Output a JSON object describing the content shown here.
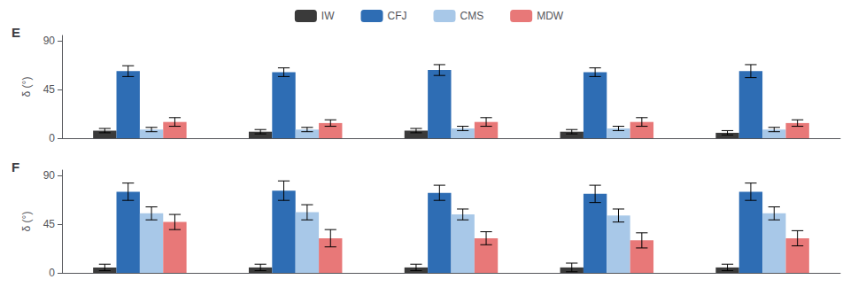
{
  "chart_data": [
    {
      "type": "bar",
      "title": "E",
      "categories": [
        null,
        null,
        null,
        null,
        null
      ],
      "series": [
        {
          "name": "IW",
          "color": "#3a3a3a",
          "values": [
            7,
            6,
            7,
            6,
            5
          ],
          "errors": [
            2,
            2,
            2,
            2,
            2
          ]
        },
        {
          "name": "CFJ",
          "color": "#2e6db4",
          "values": [
            62,
            61,
            63,
            61,
            62
          ],
          "errors": [
            5,
            4,
            5,
            4,
            6
          ]
        },
        {
          "name": "CMS",
          "color": "#a8c8e8",
          "values": [
            8,
            8,
            9,
            9,
            8
          ],
          "errors": [
            2,
            2,
            2,
            2,
            2
          ]
        },
        {
          "name": "MDW",
          "color": "#e87878",
          "values": [
            15,
            14,
            15,
            15,
            14
          ],
          "errors": [
            4,
            3,
            4,
            4,
            3
          ]
        }
      ],
      "ylabel": "δ (°)",
      "ylim": [
        0,
        95
      ],
      "yticks": [
        0,
        45,
        90
      ],
      "grid": false,
      "legend": "top",
      "tick_labels": "y"
    },
    {
      "type": "bar",
      "title": "F",
      "categories": [
        null,
        null,
        null,
        null,
        null
      ],
      "series": [
        {
          "name": "IW",
          "color": "#3a3a3a",
          "values": [
            5,
            5,
            5,
            5,
            5
          ],
          "errors": [
            3,
            3,
            3,
            4,
            3
          ]
        },
        {
          "name": "CFJ",
          "color": "#2e6db4",
          "values": [
            75,
            76,
            74,
            73,
            75
          ],
          "errors": [
            8,
            9,
            7,
            8,
            8
          ]
        },
        {
          "name": "CMS",
          "color": "#a8c8e8",
          "values": [
            55,
            56,
            54,
            53,
            55
          ],
          "errors": [
            6,
            7,
            5,
            6,
            6
          ]
        },
        {
          "name": "MDW",
          "color": "#e87878",
          "values": [
            47,
            32,
            32,
            30,
            32
          ],
          "errors": [
            7,
            8,
            6,
            7,
            7
          ]
        }
      ],
      "ylabel": "δ (°)",
      "ylim": [
        0,
        95
      ],
      "yticks": [
        0,
        45,
        90
      ],
      "grid": false,
      "tick_labels": "y"
    }
  ]
}
